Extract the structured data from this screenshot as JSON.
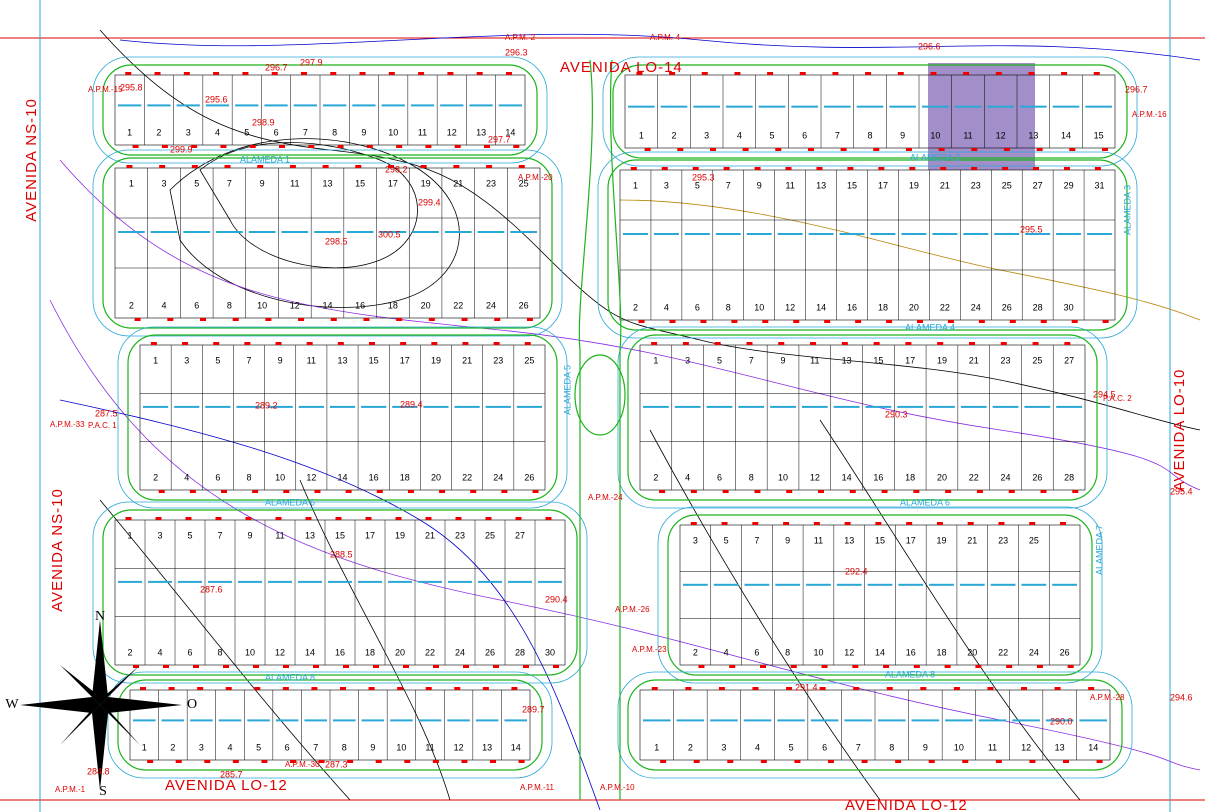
{
  "streets": [
    "AVENIDA LO-14",
    "AVENIDA LO-12",
    "AVENIDA LO-12",
    "AVENIDA NS-10",
    "AVENIDA NS-10",
    "AVENIDA LO-10"
  ],
  "alamedas": [
    "ALAMEDA 2",
    "ALAMEDA 4",
    "ALAMEDA 6",
    "ALAMEDA 6",
    "ALAMEDA 8",
    "ALAMEDA 8",
    "ALAMEDA 7",
    "ALAMEDA 3",
    "ALAMEDA 5",
    "ALAMEDA 1"
  ],
  "blocks": [
    {
      "top": [],
      "bottom": [
        1,
        2,
        3,
        4,
        5,
        6,
        7,
        8,
        9,
        10,
        11,
        12,
        13,
        14
      ]
    },
    {
      "top": [],
      "bottom": [
        1,
        2,
        3,
        4,
        5,
        6,
        7,
        8,
        9,
        10,
        11,
        12,
        13,
        14,
        15
      ]
    },
    {
      "top": [
        1,
        3,
        5,
        7,
        9,
        11,
        13,
        15,
        17,
        19,
        21,
        23,
        25
      ],
      "bottom": [
        2,
        4,
        6,
        8,
        10,
        12,
        14,
        16,
        18,
        20,
        22,
        24,
        26
      ]
    },
    {
      "top": [
        1,
        3,
        5,
        7,
        9,
        11,
        13,
        15,
        17,
        19,
        21,
        23,
        25,
        27,
        29,
        31
      ],
      "bottom": [
        2,
        4,
        6,
        8,
        10,
        12,
        14,
        16,
        18,
        20,
        22,
        24,
        26,
        28,
        30
      ]
    },
    {
      "top": [
        1,
        3,
        5,
        7,
        9,
        11,
        13,
        15,
        17,
        19,
        21,
        23,
        25
      ],
      "bottom": [
        2,
        4,
        6,
        8,
        10,
        12,
        14,
        16,
        18,
        20,
        22,
        24,
        26
      ]
    },
    {
      "top": [
        1,
        3,
        5,
        7,
        9,
        11,
        13,
        15,
        17,
        19,
        21,
        23,
        25,
        27
      ],
      "bottom": [
        2,
        4,
        6,
        8,
        10,
        12,
        14,
        16,
        18,
        20,
        22,
        24,
        26,
        28
      ]
    },
    {
      "top": [
        1,
        3,
        5,
        7,
        9,
        11,
        13,
        15,
        17,
        19,
        21,
        23,
        25,
        27
      ],
      "bottom": [
        2,
        4,
        6,
        8,
        10,
        12,
        14,
        16,
        18,
        20,
        22,
        24,
        26,
        28,
        30
      ]
    },
    {
      "top": [
        3,
        5,
        7,
        9,
        11,
        13,
        15,
        17,
        19,
        21,
        23,
        25
      ],
      "bottom": [
        2,
        4,
        6,
        8,
        10,
        12,
        14,
        16,
        18,
        20,
        22,
        24,
        26
      ]
    },
    {
      "top": [],
      "bottom": [
        1,
        2,
        3,
        4,
        5,
        6,
        7,
        8,
        9,
        10,
        11,
        12,
        13,
        14
      ]
    },
    {
      "top": [],
      "bottom": [
        1,
        2,
        3,
        4,
        5,
        6,
        7,
        8,
        9,
        10,
        11,
        12,
        13,
        14
      ]
    }
  ],
  "elevations": [
    "295.8",
    "296.7",
    "297.9",
    "295.6",
    "298.9",
    "299.9",
    "298.2",
    "299.4",
    "300.5",
    "298.5",
    "295.3",
    "295.5",
    "296.7",
    "296.6",
    "296.3",
    "297.7",
    "287.5",
    "289.2",
    "289.4",
    "290.3",
    "294.5",
    "295.4",
    "288.5",
    "287.6",
    "290.4",
    "292.4",
    "291.4",
    "294.6",
    "290.0",
    "289.7",
    "287.3",
    "285.7",
    "284.8"
  ],
  "apm_labels": [
    "A.P.M.-20",
    "A.P.M.-24",
    "A.P.M.-23",
    "A.P.M.-26",
    "A.P.M.-28",
    "A.P.M.-15",
    "A.P.M.-16",
    "A.P.M.-30",
    "A.P.M.-33",
    "P.A.C. 1",
    "P.A.C. 2",
    "A.P.M.-2",
    "A.P.M.-4",
    "A.P.M.-11",
    "A.P.M.-10",
    "A.P.M.-1"
  ],
  "compass": {
    "north": "N",
    "south": "S",
    "west": "W",
    "east": "O"
  }
}
